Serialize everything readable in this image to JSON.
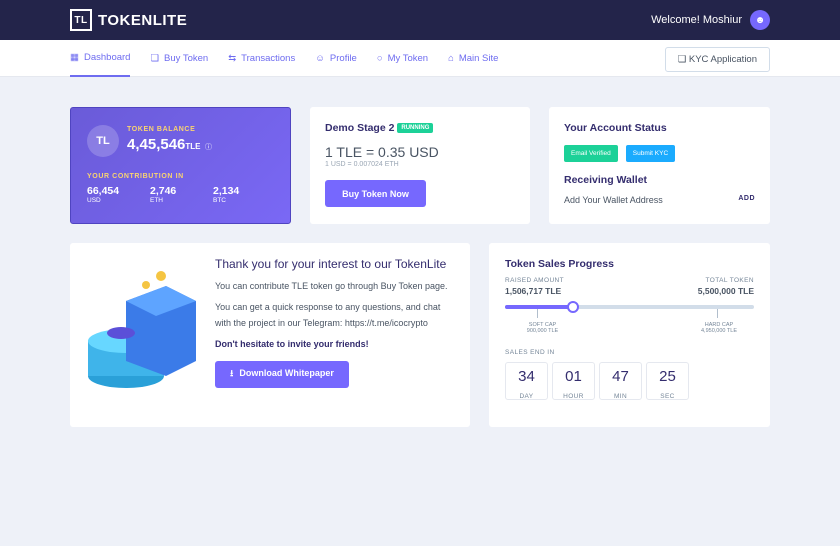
{
  "header": {
    "brand": "TOKENLITE",
    "welcome": "Welcome! Moshiur"
  },
  "nav": {
    "items": [
      "Dashboard",
      "Buy Token",
      "Transactions",
      "Profile",
      "My Token",
      "Main Site"
    ],
    "kyc_button": "KYC Application"
  },
  "balance": {
    "label": "TOKEN BALANCE",
    "amount": "4,45,546",
    "unit": "TLE",
    "contribution_label": "YOUR CONTRIBUTION IN",
    "contributions": [
      {
        "value": "66,454",
        "unit": "USD"
      },
      {
        "value": "2,746",
        "unit": "ETH"
      },
      {
        "value": "2,134",
        "unit": "BTC"
      }
    ]
  },
  "stage": {
    "title": "Demo Stage 2",
    "badge": "RUNNING",
    "price": "1 TLE = 0.35 USD",
    "sub": "1 USD = 0.007024 ETH",
    "button": "Buy Token Now"
  },
  "account": {
    "title": "Your Account Status",
    "email_badge": "Email Verified",
    "kyc_badge": "Submit KYC",
    "wallet_title": "Receiving Wallet",
    "wallet_text": "Add Your Wallet Address",
    "add": "ADD"
  },
  "info": {
    "title": "Thank you for your interest to our TokenLite",
    "p1": "You can contribute TLE token go through Buy Token page.",
    "p2": "You can get a quick response to any questions, and chat with the project in our Telegram: https://t.me/icocrypto",
    "p3": "Don't hesitate to invite your friends!",
    "button": "Download Whitepaper"
  },
  "sales": {
    "title": "Token Sales Progress",
    "raised_label": "RAISED AMOUNT",
    "raised": "1,506,717 TLE",
    "total_label": "TOTAL TOKEN",
    "total": "5,500,000 TLE",
    "progress_percent": 27.4,
    "soft_label": "SOFT CAP",
    "soft": "900,000 TLE",
    "hard_label": "HARD CAP",
    "hard": "4,950,000 TLE",
    "end_label": "SALES END IN",
    "countdown": [
      {
        "v": "34",
        "l": "DAY"
      },
      {
        "v": "01",
        "l": "HOUR"
      },
      {
        "v": "47",
        "l": "MIN"
      },
      {
        "v": "25",
        "l": "SEC"
      }
    ]
  },
  "colors": {
    "accent": "#7668fe",
    "header": "#23244a",
    "green": "#1cd198",
    "blue": "#1babfe"
  }
}
